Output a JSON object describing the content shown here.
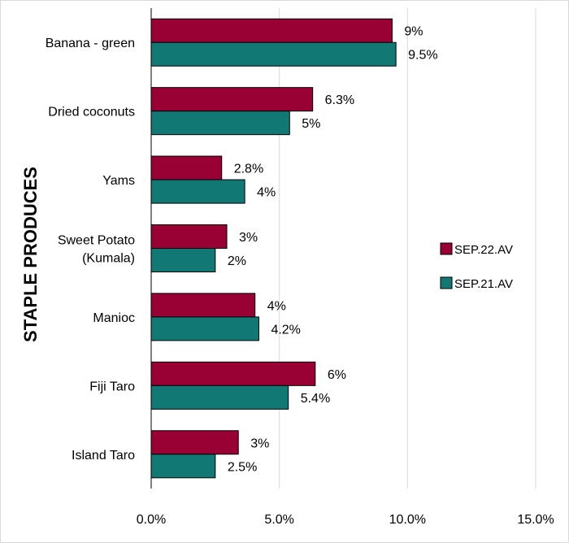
{
  "chart_data": {
    "type": "bar",
    "orientation": "horizontal",
    "ylabel": "STAPLE PRODUCES",
    "xlabel": "",
    "categories": [
      "Banana - green",
      "Dried coconuts",
      "Yams",
      "Sweet Potato (Kumala)",
      "Manioc",
      "Fiji Taro",
      "Island Taro"
    ],
    "category_lines": [
      [
        "Banana - green"
      ],
      [
        "Dried coconuts"
      ],
      [
        "Yams"
      ],
      [
        "Sweet Potato",
        "(Kumala)"
      ],
      [
        "Manioc"
      ],
      [
        "Fiji Taro"
      ],
      [
        "Island Taro"
      ]
    ],
    "series": [
      {
        "name": "SEP.22.AV",
        "color": "#990033",
        "values": [
          9.4,
          6.3,
          2.75,
          2.95,
          4.05,
          6.4,
          3.4
        ],
        "labels": [
          "9%",
          "6.3%",
          "2.8%",
          "3%",
          "4%",
          "6%",
          "3%"
        ]
      },
      {
        "name": "SEP.21.AV",
        "color": "#127874",
        "values": [
          9.55,
          5.4,
          3.65,
          2.5,
          4.2,
          5.35,
          2.5
        ],
        "labels": [
          "9.5%",
          "5%",
          "4%",
          "2%",
          "4.2%",
          "5.4%",
          "2.5%"
        ]
      }
    ],
    "xlim": [
      0,
      15
    ],
    "xticks": [
      0,
      5,
      10,
      15
    ],
    "xtick_labels": [
      "0.0%",
      "5.0%",
      "10.0%",
      "15.0%"
    ],
    "grid": "vertical",
    "legend_position": "right"
  }
}
